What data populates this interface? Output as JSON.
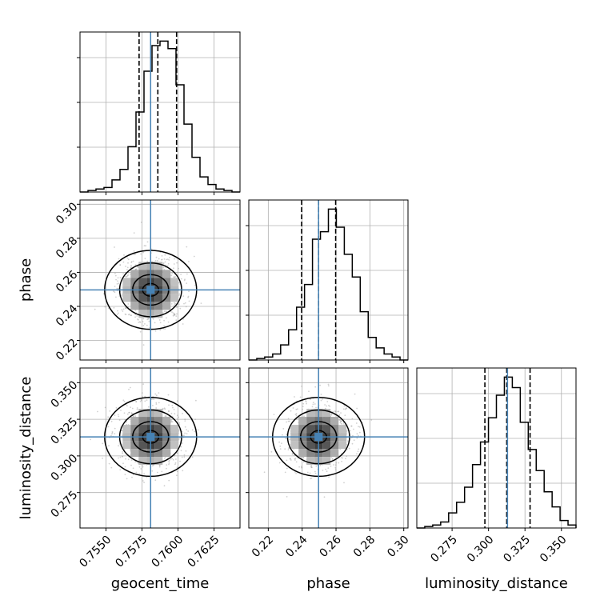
{
  "chart_data": {
    "type": "corner",
    "parameters": [
      "geocent_time",
      "phase",
      "luminosity_distance"
    ],
    "labels": {
      "geocent_time": "geocent_time",
      "phase": "phase",
      "luminosity_distance": "luminosity_distance"
    },
    "truth_color": "#4682b4",
    "hist_color": "#000000",
    "truths": {
      "geocent_time": 0.7581,
      "phase": 0.2497,
      "luminosity_distance": 0.313
    },
    "ranges": {
      "geocent_time": [
        0.7532,
        0.7643
      ],
      "phase": [
        0.2085,
        0.3025
      ],
      "luminosity_distance": [
        0.2508,
        0.36
      ]
    },
    "ticks": {
      "geocent_time": {
        "values": [
          0.755,
          0.7575,
          0.76,
          0.7625
        ],
        "labels": [
          "0.7550",
          "0.7575",
          "0.7600",
          "0.7625"
        ]
      },
      "phase": {
        "values": [
          0.22,
          0.24,
          0.26,
          0.28,
          0.3
        ],
        "labels": [
          "0.22",
          "0.24",
          "0.26",
          "0.28",
          "0.30"
        ]
      },
      "luminosity_distance": {
        "values": [
          0.275,
          0.3,
          0.325,
          0.35
        ],
        "labels": [
          "0.275",
          "0.300",
          "0.325",
          "0.350"
        ]
      }
    },
    "quantiles": {
      "geocent_time": [
        0.7573,
        0.7586,
        0.7599
      ],
      "phase": [
        0.2397,
        0.2497,
        0.2598
      ],
      "luminosity_distance": [
        0.2975,
        0.3125,
        0.3285
      ]
    },
    "histograms": {
      "geocent_time": {
        "range": [
          0.7532,
          0.7643
        ],
        "counts": [
          0,
          1,
          2,
          3,
          8,
          15,
          30,
          53,
          80,
          97,
          100,
          95,
          71,
          45,
          23,
          10,
          5,
          2,
          1,
          0
        ]
      },
      "phase": {
        "range": [
          0.2085,
          0.3025
        ],
        "counts": [
          0,
          1,
          2,
          4,
          10,
          20,
          35,
          50,
          80,
          85,
          100,
          88,
          70,
          55,
          32,
          15,
          8,
          4,
          2,
          0
        ]
      },
      "luminosity_distance": {
        "range": [
          0.2508,
          0.36
        ],
        "counts": [
          0,
          1,
          2,
          4,
          10,
          17,
          27,
          42,
          57,
          73,
          88,
          100,
          93,
          70,
          52,
          38,
          24,
          14,
          5,
          2
        ]
      }
    },
    "pairs": [
      {
        "x": "geocent_time",
        "y": "phase"
      },
      {
        "x": "geocent_time",
        "y": "luminosity_distance"
      },
      {
        "x": "phase",
        "y": "luminosity_distance"
      }
    ],
    "grid": true
  }
}
